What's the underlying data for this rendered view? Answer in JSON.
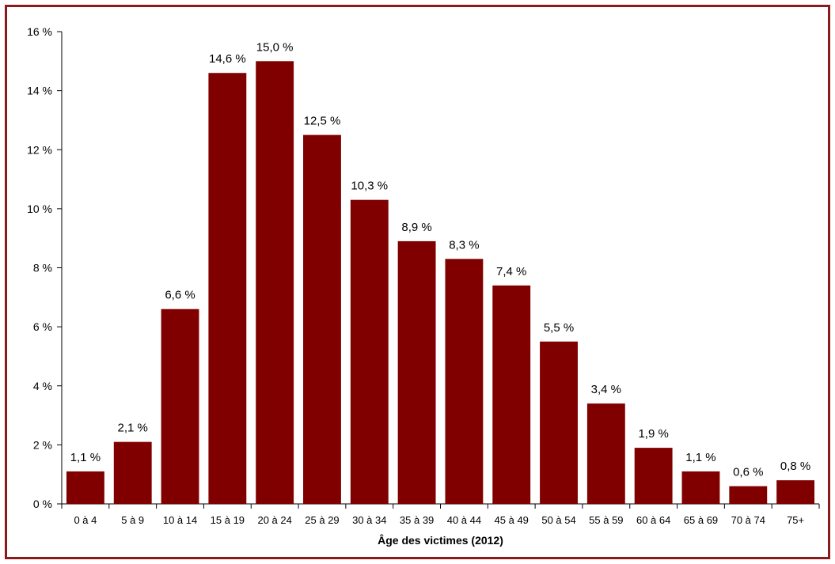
{
  "chart_data": {
    "type": "bar",
    "title": "",
    "xlabel": "Âge des victimes (2012)",
    "ylabel": "",
    "categories": [
      "0 à 4",
      "5 à 9",
      "10 à 14",
      "15 à 19",
      "20 à 24",
      "25 à 29",
      "30 à 34",
      "35 à 39",
      "40 à 44",
      "45 à 49",
      "50 à 54",
      "55 à 59",
      "60 à 64",
      "65 à 69",
      "70 à 74",
      "75+"
    ],
    "values": [
      1.1,
      2.1,
      6.6,
      14.6,
      15.0,
      12.5,
      10.3,
      8.9,
      8.3,
      7.4,
      5.5,
      3.4,
      1.9,
      1.1,
      0.6,
      0.8
    ],
    "value_labels": [
      "1,1 %",
      "2,1 %",
      "6,6 %",
      "14,6 %",
      "15,0 %",
      "12,5 %",
      "10,3 %",
      "8,9 %",
      "8,3 %",
      "7,4 %",
      "5,5 %",
      "3,4 %",
      "1,9 %",
      "1,1 %",
      "0,6 %",
      "0,8 %"
    ],
    "ylim": [
      0,
      16
    ],
    "yticks": [
      0,
      2,
      4,
      6,
      8,
      10,
      12,
      14,
      16
    ],
    "ytick_labels": [
      "0 %",
      "2 %",
      "4 %",
      "6 %",
      "8 %",
      "10 %",
      "12 %",
      "14 %",
      "16 %"
    ],
    "grid": false,
    "legend": "none",
    "bar_color": "#800000",
    "frame_color": "#8b1a1a"
  }
}
